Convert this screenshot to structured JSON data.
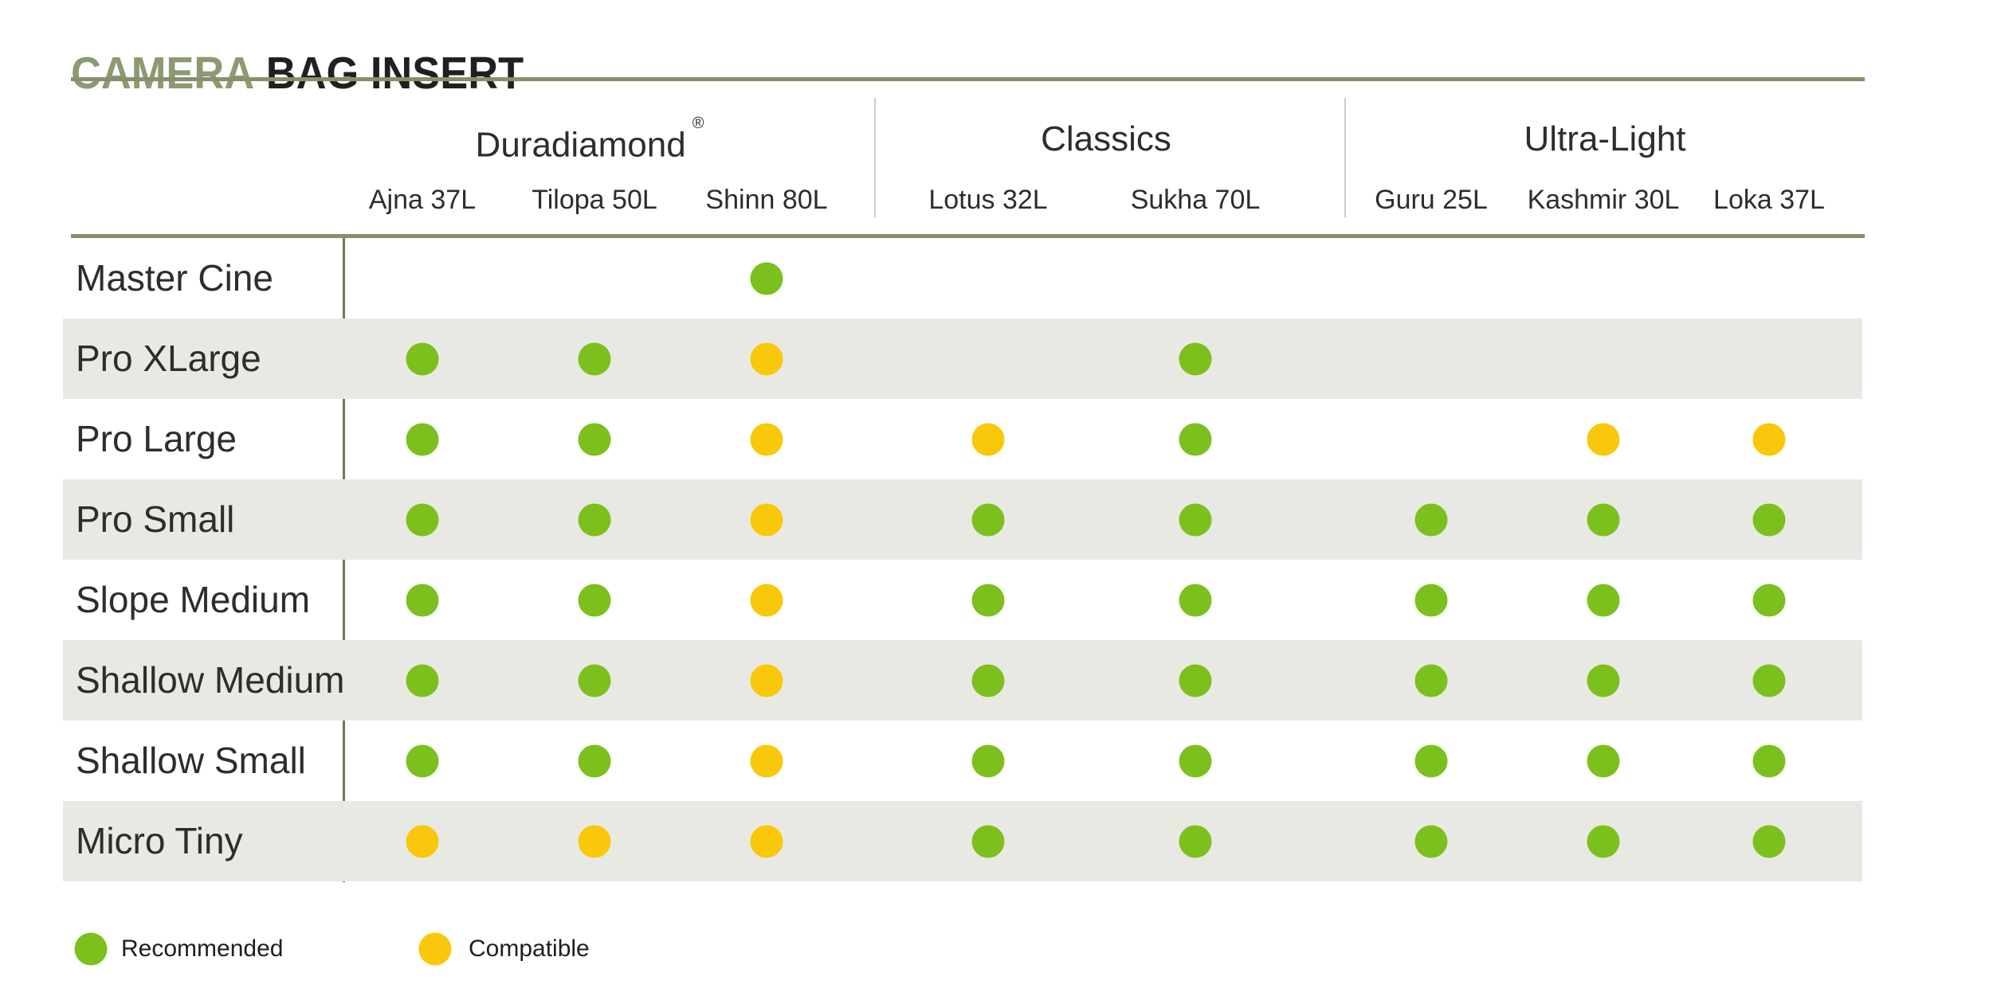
{
  "title": {
    "part1": "CAMERA",
    "part2": "BAG INSERT"
  },
  "colors": {
    "recommended_green": "#7CC01D",
    "compatible_yellow": "#F9C80A",
    "rule_olive": "#87906B",
    "left_divider_olive": "#6F7757",
    "row_stripe": "#E9E9E3",
    "group_divider_gray": "#CBCBC4",
    "title_green": "#8C9A72",
    "title_black": "#231F20"
  },
  "chart_data": {
    "type": "table",
    "title": "CAMERA BAG INSERT",
    "column_groups": [
      {
        "label": "Duradiamond",
        "registered_trademark": true,
        "columns": [
          "Ajna 37L",
          "Tilopa 50L",
          "Shinn 80L"
        ]
      },
      {
        "label": "Classics",
        "registered_trademark": false,
        "columns": [
          "Lotus 32L",
          "Sukha 70L"
        ]
      },
      {
        "label": "Ultra-Light",
        "registered_trademark": false,
        "columns": [
          "Guru 25L",
          "Kashmir 30L",
          "Loka 37L"
        ]
      }
    ],
    "columns": [
      "Ajna 37L",
      "Tilopa 50L",
      "Shinn 80L",
      "Lotus 32L",
      "Sukha 70L",
      "Guru 25L",
      "Kashmir 30L",
      "Loka 37L"
    ],
    "rows": [
      {
        "label": "Master Cine",
        "cells": [
          null,
          null,
          "recommended",
          null,
          null,
          null,
          null,
          null
        ]
      },
      {
        "label": "Pro XLarge",
        "cells": [
          "recommended",
          "recommended",
          "compatible",
          null,
          "recommended",
          null,
          null,
          null
        ]
      },
      {
        "label": "Pro Large",
        "cells": [
          "recommended",
          "recommended",
          "compatible",
          "compatible",
          "recommended",
          null,
          "compatible",
          "compatible"
        ]
      },
      {
        "label": "Pro Small",
        "cells": [
          "recommended",
          "recommended",
          "compatible",
          "recommended",
          "recommended",
          "recommended",
          "recommended",
          "recommended"
        ]
      },
      {
        "label": "Slope Medium",
        "cells": [
          "recommended",
          "recommended",
          "compatible",
          "recommended",
          "recommended",
          "recommended",
          "recommended",
          "recommended"
        ]
      },
      {
        "label": "Shallow Medium",
        "cells": [
          "recommended",
          "recommended",
          "compatible",
          "recommended",
          "recommended",
          "recommended",
          "recommended",
          "recommended"
        ]
      },
      {
        "label": "Shallow Small",
        "cells": [
          "recommended",
          "recommended",
          "compatible",
          "recommended",
          "recommended",
          "recommended",
          "recommended",
          "recommended"
        ]
      },
      {
        "label": "Micro Tiny",
        "cells": [
          "compatible",
          "compatible",
          "compatible",
          "recommended",
          "recommended",
          "recommended",
          "recommended",
          "recommended"
        ]
      }
    ],
    "legend": {
      "recommended": "Recommended",
      "compatible": "Compatible"
    },
    "registered_symbol": "®"
  }
}
